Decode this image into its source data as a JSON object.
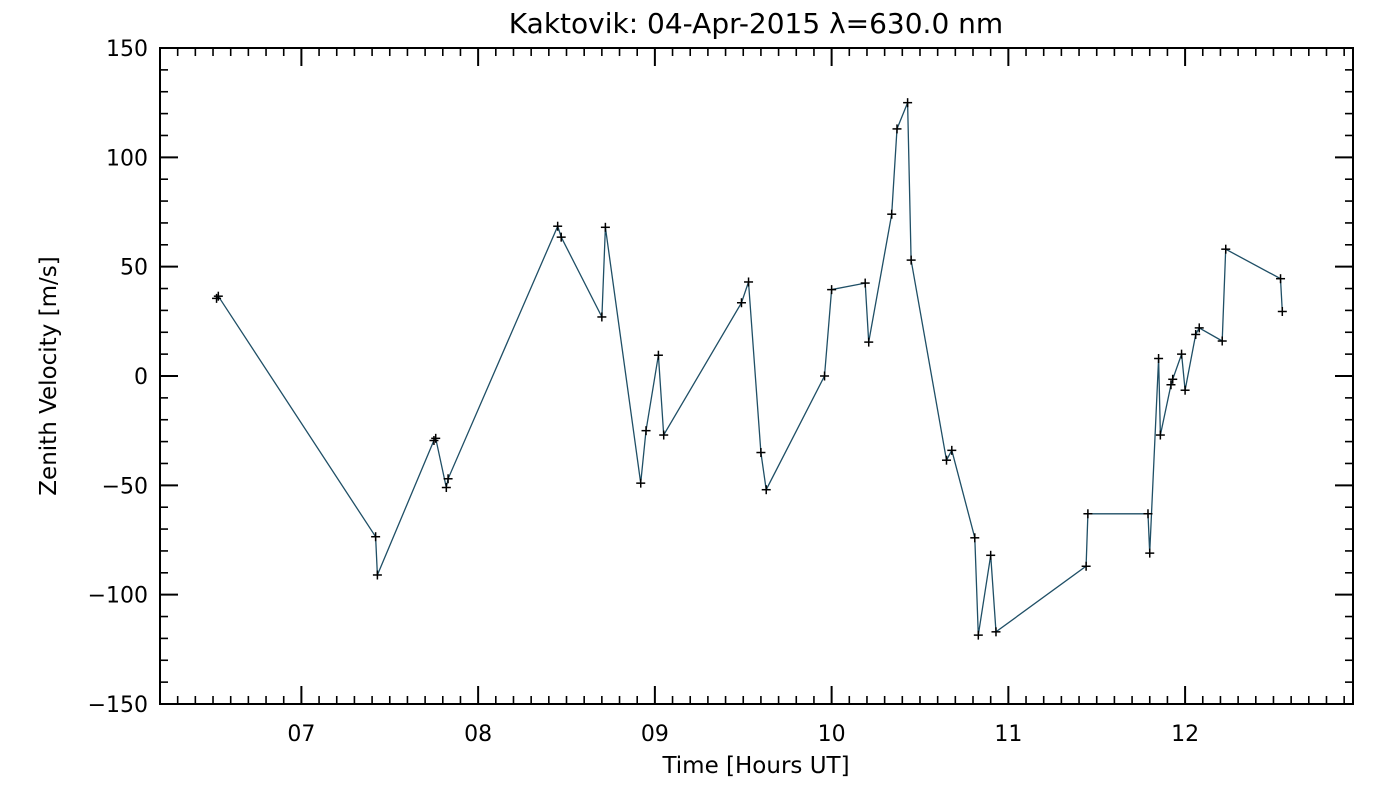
{
  "chart_data": {
    "type": "line",
    "title": "Kaktovik: 04-Apr-2015 λ=630.0 nm",
    "xlabel": "Time [Hours UT]",
    "ylabel": "Zenith Velocity [m/s]",
    "xlim": [
      6.2,
      12.95
    ],
    "ylim": [
      -150,
      150
    ],
    "xticks": [
      7,
      8,
      9,
      10,
      11,
      12
    ],
    "xtick_labels": [
      "07",
      "08",
      "09",
      "10",
      "11",
      "12"
    ],
    "yticks": [
      -150,
      -100,
      -50,
      0,
      50,
      100,
      150
    ],
    "ytick_labels": [
      "−150",
      "−100",
      "−50",
      "0",
      "50",
      "100",
      "150"
    ],
    "grid": false,
    "line_color": "#1f4f66",
    "marker": "+",
    "series": [
      {
        "x": [
          6.52,
          6.53,
          7.42,
          7.43,
          7.75,
          7.76,
          7.82,
          7.83,
          8.45,
          8.47,
          8.7,
          8.72,
          8.92,
          8.95,
          9.02,
          9.05,
          9.49,
          9.53,
          9.6,
          9.63,
          9.96,
          10.0,
          10.19,
          10.21,
          10.34,
          10.37,
          10.43,
          10.45,
          10.65,
          10.68,
          10.81,
          10.83,
          10.9,
          10.93,
          11.44,
          11.45,
          11.79,
          11.8,
          11.85,
          11.86,
          11.92,
          11.93,
          11.98,
          12.0,
          12.06,
          12.08,
          12.21,
          12.23,
          12.54,
          12.55
        ],
        "y": [
          35.5,
          36.5,
          -73.5,
          -91,
          -29.5,
          -28.5,
          -51,
          -47,
          68.5,
          63.5,
          27,
          68,
          -49,
          -25,
          9.5,
          -27,
          33.5,
          43,
          -35,
          -52,
          0,
          39.5,
          42.5,
          15.5,
          74,
          113,
          125,
          53,
          -38.5,
          -34,
          -74,
          -118.5,
          -82,
          -117,
          -87,
          -63,
          -63,
          -81,
          8,
          -27,
          -4,
          -1.5,
          10,
          -6.5,
          19,
          22,
          16,
          58,
          44.5,
          29.5
        ]
      }
    ]
  }
}
